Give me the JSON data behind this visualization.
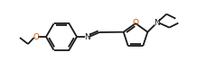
{
  "bg_color": "#ffffff",
  "line_color": "#1a1a1a",
  "oxygen_color": "#c85000",
  "nitrogen_color": "#1a1a1a",
  "lw": 1.3,
  "figsize": [
    2.18,
    0.88
  ],
  "dpi": 100,
  "xlim": [
    0,
    218
  ],
  "ylim": [
    0,
    88
  ]
}
